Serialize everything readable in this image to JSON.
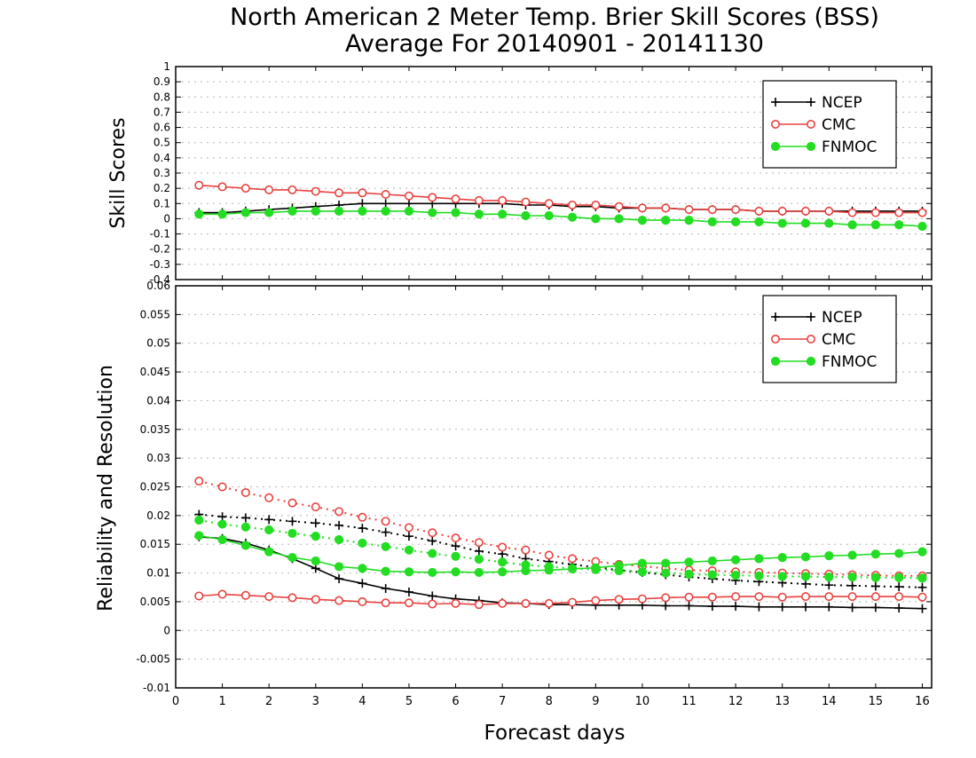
{
  "title": "North American 2 Meter Temp. Brier Skill Scores (BSS)",
  "subtitle": "Average For 20140901 - 20141130",
  "xlabel": "Forecast days",
  "colors": {
    "NCEP": "#000000",
    "CMC": "#e8423f",
    "FNMOC": "#22dd22",
    "grid": "#b5b5b5"
  },
  "chart_data": [
    {
      "type": "line",
      "ylabel": "Skill Scores",
      "xlim": [
        0,
        16.2
      ],
      "ylim": [
        -0.4,
        1.0
      ],
      "x_ticks": [
        "0",
        "1",
        "2",
        "3",
        "4",
        "5",
        "6",
        "7",
        "8",
        "9",
        "10",
        "11",
        "12",
        "13",
        "14",
        "15",
        "16"
      ],
      "y_ticks": [
        "-0.4",
        "-0.3",
        "-0.2",
        "-0.1",
        "0",
        "0.1",
        "0.2",
        "0.3",
        "0.4",
        "0.5",
        "0.6",
        "0.7",
        "0.8",
        "0.9",
        "1"
      ],
      "grid": "horizontal dotted",
      "legend_position": "top-right",
      "x": [
        0.5,
        1,
        1.5,
        2,
        2.5,
        3,
        3.5,
        4,
        4.5,
        5,
        5.5,
        6,
        6.5,
        7,
        7.5,
        8,
        8.5,
        9,
        9.5,
        10,
        10.5,
        11,
        11.5,
        12,
        12.5,
        13,
        13.5,
        14,
        14.5,
        15,
        15.5,
        16
      ],
      "series": [
        {
          "name": "NCEP",
          "style": "solid",
          "marker": "plus",
          "values": [
            0.04,
            0.04,
            0.05,
            0.06,
            0.07,
            0.08,
            0.09,
            0.1,
            0.1,
            0.1,
            0.1,
            0.1,
            0.1,
            0.1,
            0.09,
            0.09,
            0.08,
            0.08,
            0.07,
            0.07,
            0.07,
            0.06,
            0.06,
            0.06,
            0.05,
            0.05,
            0.05,
            0.05,
            0.05,
            0.05,
            0.05,
            0.05
          ]
        },
        {
          "name": "CMC",
          "style": "solid",
          "marker": "open-circle",
          "values": [
            0.22,
            0.21,
            0.2,
            0.19,
            0.19,
            0.18,
            0.17,
            0.17,
            0.16,
            0.15,
            0.14,
            0.13,
            0.12,
            0.12,
            0.11,
            0.1,
            0.09,
            0.09,
            0.08,
            0.07,
            0.07,
            0.06,
            0.06,
            0.06,
            0.05,
            0.05,
            0.05,
            0.05,
            0.04,
            0.04,
            0.04,
            0.04
          ]
        },
        {
          "name": "FNMOC",
          "style": "solid",
          "marker": "filled-circle",
          "values": [
            0.03,
            0.03,
            0.04,
            0.04,
            0.05,
            0.05,
            0.05,
            0.05,
            0.05,
            0.05,
            0.04,
            0.04,
            0.03,
            0.03,
            0.02,
            0.02,
            0.01,
            0.0,
            0.0,
            -0.01,
            -0.01,
            -0.01,
            -0.02,
            -0.02,
            -0.02,
            -0.03,
            -0.03,
            -0.03,
            -0.04,
            -0.04,
            -0.04,
            -0.05
          ]
        }
      ]
    },
    {
      "type": "line",
      "ylabel": "Reliability and Resolution",
      "xlim": [
        0,
        16.2
      ],
      "ylim": [
        -0.01,
        0.06
      ],
      "x_ticks": [
        "0",
        "1",
        "2",
        "3",
        "4",
        "5",
        "6",
        "7",
        "8",
        "9",
        "10",
        "11",
        "12",
        "13",
        "14",
        "15",
        "16"
      ],
      "y_ticks": [
        "-0.01",
        "-0.005",
        "0",
        "0.005",
        "0.01",
        "0.015",
        "0.02",
        "0.025",
        "0.03",
        "0.035",
        "0.04",
        "0.045",
        "0.05",
        "0.055",
        "0.06"
      ],
      "grid": "horizontal dotted",
      "legend_position": "top-right",
      "x": [
        0.5,
        1,
        1.5,
        2,
        2.5,
        3,
        3.5,
        4,
        4.5,
        5,
        5.5,
        6,
        6.5,
        7,
        7.5,
        8,
        8.5,
        9,
        9.5,
        10,
        10.5,
        11,
        11.5,
        12,
        12.5,
        13,
        13.5,
        14,
        14.5,
        15,
        15.5,
        16
      ],
      "series": [
        {
          "name": "NCEP",
          "style": "solid",
          "marker": "plus",
          "values": [
            0.0163,
            0.016,
            0.0152,
            0.014,
            0.0125,
            0.0108,
            0.009,
            0.0082,
            0.0073,
            0.0067,
            0.006,
            0.0055,
            0.0052,
            0.0048,
            0.0047,
            0.0045,
            0.0045,
            0.0044,
            0.0044,
            0.0044,
            0.0043,
            0.0043,
            0.0042,
            0.0042,
            0.0041,
            0.0041,
            0.0041,
            0.0041,
            0.004,
            0.004,
            0.0039,
            0.0038
          ]
        },
        {
          "name": "NCEP",
          "style": "dotted",
          "marker": "plus",
          "values": [
            0.0202,
            0.0198,
            0.0196,
            0.0193,
            0.019,
            0.0187,
            0.0183,
            0.0178,
            0.0171,
            0.0164,
            0.0156,
            0.0147,
            0.0138,
            0.0133,
            0.0125,
            0.012,
            0.0115,
            0.011,
            0.0105,
            0.0101,
            0.0097,
            0.0093,
            0.009,
            0.0087,
            0.0085,
            0.0083,
            0.0081,
            0.0079,
            0.0078,
            0.0077,
            0.0076,
            0.0075
          ]
        },
        {
          "name": "CMC",
          "style": "solid",
          "marker": "open-circle",
          "values": [
            0.006,
            0.0063,
            0.0061,
            0.0059,
            0.0057,
            0.0054,
            0.0052,
            0.005,
            0.0048,
            0.0048,
            0.0046,
            0.0047,
            0.0045,
            0.0047,
            0.0047,
            0.0047,
            0.0049,
            0.0052,
            0.0054,
            0.0055,
            0.0057,
            0.0058,
            0.0058,
            0.0059,
            0.0059,
            0.0058,
            0.0059,
            0.0059,
            0.0059,
            0.0059,
            0.0059,
            0.0058
          ]
        },
        {
          "name": "CMC",
          "style": "dotted",
          "marker": "open-circle",
          "values": [
            0.026,
            0.025,
            0.024,
            0.0231,
            0.0222,
            0.0215,
            0.0207,
            0.0197,
            0.019,
            0.0179,
            0.017,
            0.0161,
            0.0153,
            0.0145,
            0.014,
            0.0131,
            0.0125,
            0.012,
            0.0115,
            0.0112,
            0.0108,
            0.0105,
            0.0104,
            0.0102,
            0.0101,
            0.01,
            0.0099,
            0.0098,
            0.0097,
            0.0096,
            0.0095,
            0.0095
          ]
        },
        {
          "name": "FNMOC",
          "style": "solid",
          "marker": "filled-circle",
          "values": [
            0.0165,
            0.0158,
            0.0148,
            0.0137,
            0.0127,
            0.0121,
            0.0111,
            0.0108,
            0.0103,
            0.0102,
            0.0101,
            0.0102,
            0.0101,
            0.0102,
            0.0104,
            0.0105,
            0.0107,
            0.0109,
            0.0113,
            0.0117,
            0.0117,
            0.0119,
            0.0121,
            0.0123,
            0.0125,
            0.0127,
            0.0128,
            0.013,
            0.0131,
            0.0133,
            0.0134,
            0.0137
          ]
        },
        {
          "name": "FNMOC",
          "style": "dotted",
          "marker": "filled-circle",
          "values": [
            0.0192,
            0.0185,
            0.018,
            0.0175,
            0.0169,
            0.0164,
            0.0158,
            0.0152,
            0.0146,
            0.014,
            0.0134,
            0.0129,
            0.0124,
            0.0119,
            0.0114,
            0.0111,
            0.0108,
            0.0106,
            0.0104,
            0.0102,
            0.01,
            0.0098,
            0.0097,
            0.0096,
            0.0095,
            0.0094,
            0.0094,
            0.0093,
            0.0093,
            0.0092,
            0.0092,
            0.0091
          ]
        }
      ]
    }
  ]
}
